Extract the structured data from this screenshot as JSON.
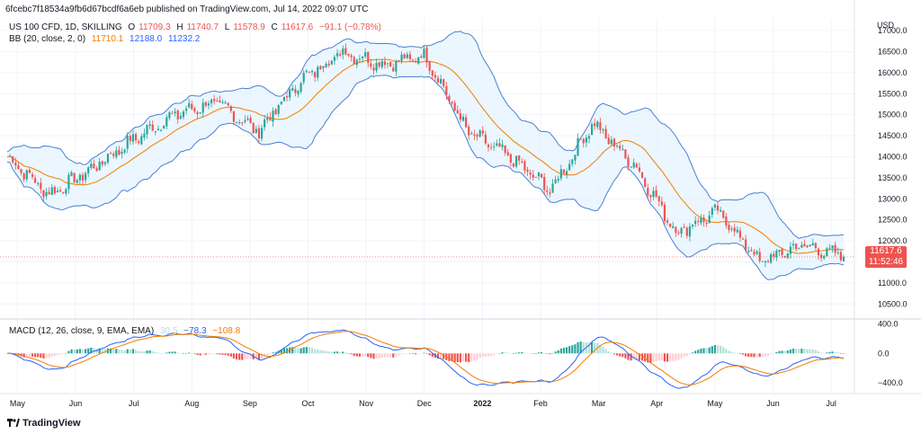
{
  "publisher_line": "6fcebc7f18534a9fb6d67bcdf6a6eb published on TradingView.com, Jul 14, 2022 09:07 UTC",
  "legend": {
    "symbol": "US 100 CFD, 1D, SKILLING",
    "o_label": "O",
    "o_value": "11709.3",
    "h_label": "H",
    "h_value": "11740.7",
    "l_label": "L",
    "l_value": "11578.9",
    "c_label": "C",
    "c_value": "11617.6",
    "change": "−91.1 (−0.78%)",
    "bb_label": "BB (20, close, 2, 0)",
    "bb_basis": "11710.1",
    "bb_upper": "12188.0",
    "bb_lower": "11232.2"
  },
  "macd_legend": {
    "label": "MACD (12, 26, close, 9, EMA, EMA)",
    "hist": "30.5",
    "macd": "−78.3",
    "signal": "−108.8"
  },
  "price_tag": {
    "price": "11617.6",
    "countdown": "11:52:46"
  },
  "branding": "TradingView",
  "colors": {
    "up": "#26a69a",
    "down": "#ef5350",
    "bb_band": "#4a7fd6",
    "bb_basis": "#f57c00",
    "bb_fill": "#e3f2fd",
    "macd_line": "#2962ff",
    "signal_line": "#f57c00",
    "hist_up_strong": "#26a69a",
    "hist_up_weak": "#b2dfdb",
    "hist_down_strong": "#ef5350",
    "hist_down_weak": "#ffcdd2"
  },
  "chart_data": [
    {
      "type": "candlestick",
      "currency": "USD",
      "y_ticks": [
        10500,
        11000,
        11500,
        12000,
        12500,
        13000,
        13500,
        14000,
        14500,
        15000,
        15500,
        16000,
        16500,
        17000
      ],
      "y_tick_labels": [
        "10500.0",
        "11000.0",
        "11500.0",
        "12000.0",
        "12500.0",
        "13000.0",
        "13500.0",
        "14000.0",
        "14500.0",
        "15000.0",
        "15500.0",
        "16000.0",
        "16500.0",
        "17000.0"
      ],
      "ylim": [
        10250,
        17300
      ],
      "x_labels": [
        "May",
        "Jun",
        "Jul",
        "Aug",
        "Sep",
        "Oct",
        "Nov",
        "Dec",
        "2022",
        "Feb",
        "Mar",
        "Apr",
        "May",
        "Jun",
        "Jul"
      ],
      "x_label_month_index": [
        0,
        1,
        2,
        3,
        4,
        5,
        6,
        7,
        8,
        9,
        10,
        11,
        12,
        13,
        14
      ],
      "month_start_offset": -0.3,
      "months_shown": 14.7,
      "monthly_path_close": [
        14000,
        13100,
        13700,
        14400,
        15000,
        15300,
        14600,
        15800,
        16500,
        16200,
        16400,
        14600,
        14000,
        13200,
        14800,
        13800,
        12200,
        12700,
        11500,
        11900,
        11617.6
      ],
      "last_close": 11617.6,
      "bollinger": {
        "period": 20,
        "stddev": 2,
        "basis": 11710.1,
        "upper": 12188.0,
        "lower": 11232.2
      },
      "grid": true
    },
    {
      "type": "macd",
      "y_ticks": [
        -400,
        0,
        400
      ],
      "y_tick_labels": [
        "−400.0",
        "0.0",
        "400.0"
      ],
      "ylim": [
        -520,
        430
      ],
      "macd": -78.3,
      "signal": -108.8,
      "histogram": 30.5
    }
  ]
}
